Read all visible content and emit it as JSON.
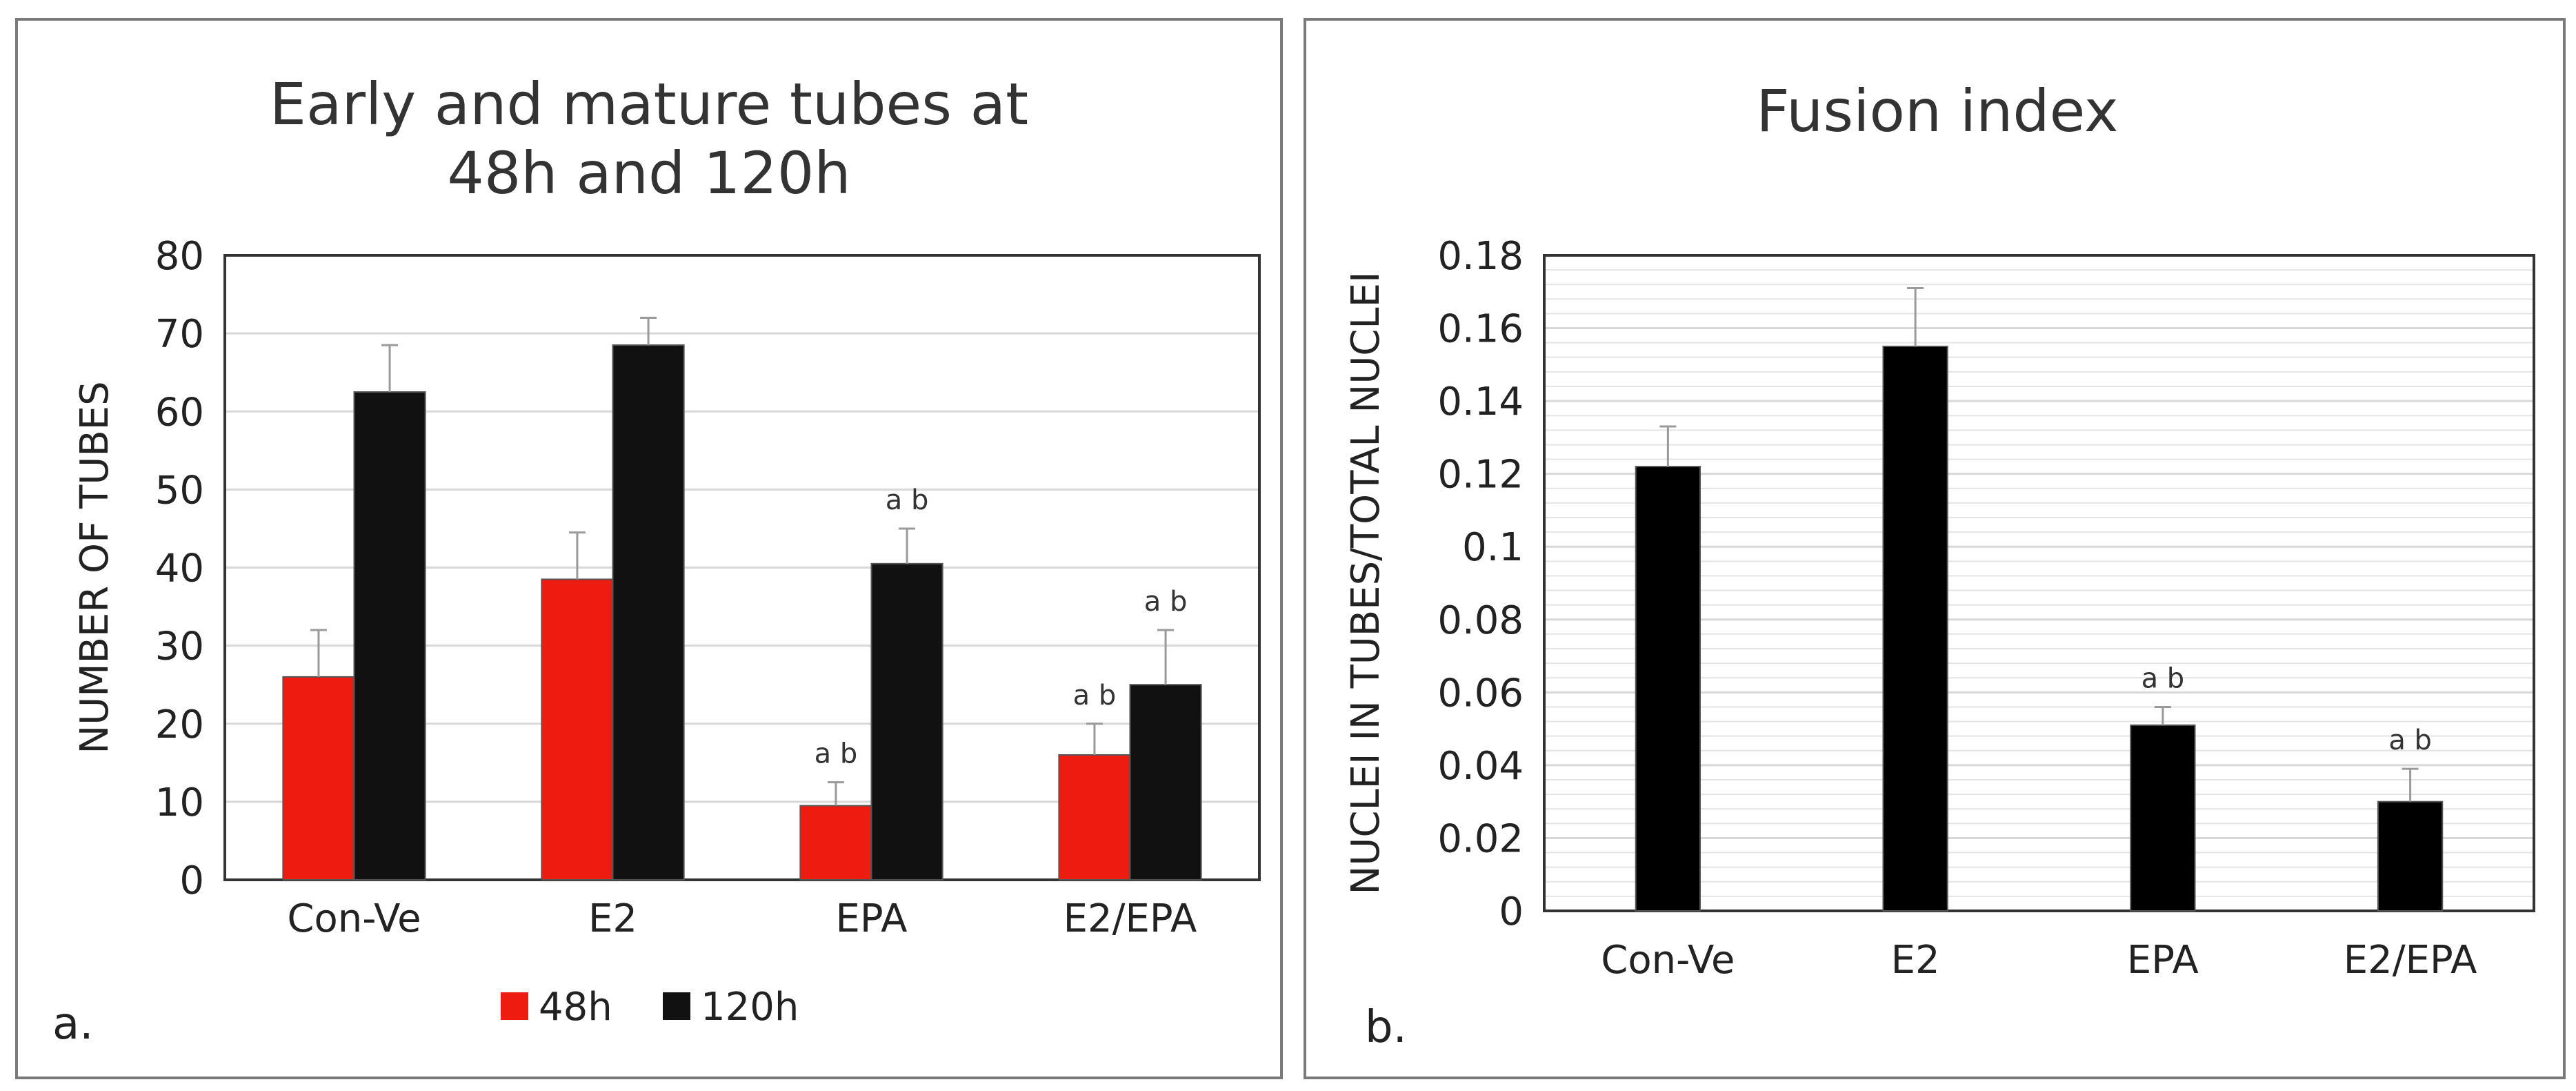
{
  "chart_data": [
    {
      "panel_label": "a.",
      "type": "bar",
      "title_lines": [
        "Early and mature tubes at",
        "48h and 120h"
      ],
      "xlabel": "",
      "ylabel": "NUMBER OF TUBES",
      "ylim": [
        0,
        80
      ],
      "yticks": [
        "0",
        "10",
        "20",
        "30",
        "40",
        "50",
        "60",
        "70",
        "80"
      ],
      "categories": [
        "Con-Ve",
        "E2",
        "EPA",
        "E2/EPA"
      ],
      "series": [
        {
          "name": "48h",
          "color": "#ee1c10",
          "values": [
            26,
            38.5,
            9.5,
            16
          ],
          "errors": [
            6,
            6,
            3,
            4
          ],
          "annotations": [
            "",
            "",
            "a b",
            "a b"
          ]
        },
        {
          "name": "120h",
          "color": "#111111",
          "values": [
            62.5,
            68.5,
            40.5,
            25
          ],
          "errors": [
            6,
            3.5,
            4.5,
            7
          ],
          "annotations": [
            "",
            "",
            "a b",
            "a b"
          ]
        }
      ],
      "grid": true,
      "legend_position": "bottom"
    },
    {
      "panel_label": "b.",
      "type": "bar",
      "title_lines": [
        "Fusion index"
      ],
      "xlabel": "",
      "ylabel": "NUCLEI IN TUBES/TOTAL NUCLEI",
      "ylim": [
        0,
        0.18
      ],
      "yticks": [
        "0",
        "0.02",
        "0.04",
        "0.06",
        "0.08",
        "0.1",
        "0.12",
        "0.14",
        "0.16",
        "0.18"
      ],
      "categories": [
        "Con-Ve",
        "E2",
        "EPA",
        "E2/EPA"
      ],
      "series": [
        {
          "name": "Fusion index",
          "color": "#000000",
          "values": [
            0.122,
            0.155,
            0.051,
            0.03
          ],
          "errors": [
            0.011,
            0.016,
            0.005,
            0.009
          ],
          "annotations": [
            "",
            "",
            "a b",
            "a b"
          ]
        }
      ],
      "grid": true,
      "legend_position": "none"
    }
  ]
}
